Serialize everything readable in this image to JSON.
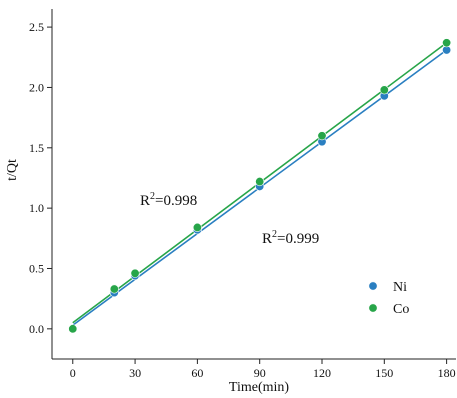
{
  "chart_data": {
    "type": "scatter",
    "title": "",
    "xlabel": "Time(min)",
    "ylabel": "t/Qt",
    "xlim": [
      -10,
      185
    ],
    "ylim": [
      -0.25,
      2.65
    ],
    "xticks": [
      0,
      30,
      60,
      90,
      120,
      150,
      180
    ],
    "yticks": [
      0.0,
      0.5,
      1.0,
      1.5,
      2.0,
      2.5
    ],
    "xtick_labels": [
      "0",
      "30",
      "60",
      "90",
      "120",
      "150",
      "180"
    ],
    "ytick_labels": [
      "0.0",
      "0.5",
      "1.0",
      "1.5",
      "2.0",
      "2.5"
    ],
    "grid": false,
    "legend_position": "lower-right",
    "series": [
      {
        "name": "Ni",
        "color": "#2a7fc1",
        "x": [
          0,
          20,
          30,
          60,
          90,
          120,
          150,
          180
        ],
        "y": [
          0.0,
          0.3,
          0.44,
          0.82,
          1.18,
          1.55,
          1.93,
          2.31
        ],
        "fit": {
          "x": [
            0,
            180
          ],
          "y": [
            0.03,
            2.31
          ]
        }
      },
      {
        "name": "Co",
        "color": "#27a549",
        "x": [
          0,
          20,
          30,
          60,
          90,
          120,
          150,
          180
        ],
        "y": [
          0.0,
          0.33,
          0.46,
          0.84,
          1.22,
          1.6,
          1.98,
          2.37
        ],
        "fit": {
          "x": [
            0,
            180
          ],
          "y": [
            0.05,
            2.37
          ]
        }
      }
    ],
    "annotations": [
      {
        "text": "R²=0.998",
        "color": "#27a549",
        "series": "Co"
      },
      {
        "text": "R²=0.999",
        "color": "#2a7fc1",
        "series": "Ni"
      }
    ]
  }
}
